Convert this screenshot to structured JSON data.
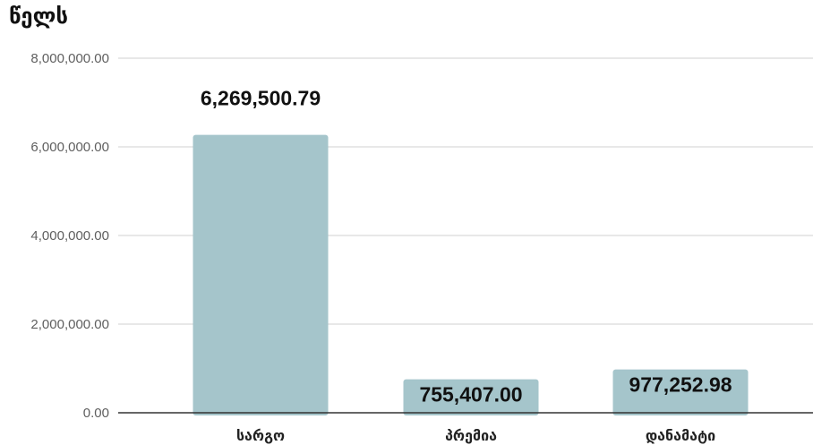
{
  "title": "წელს",
  "colors": {
    "bar": "#a5c5cb",
    "gridline": "#d0d0d0",
    "axis_line": "#333333"
  },
  "chart_data": {
    "type": "bar",
    "title": "წელს",
    "xlabel": "",
    "ylabel": "",
    "categories": [
      "სარგო",
      "პრემია",
      "დანამატი"
    ],
    "values": [
      6269500.79,
      755407.0,
      977252.98
    ],
    "data_labels": [
      "6,269,500.79",
      "755,407.00",
      "977,252.98"
    ],
    "y_ticks": [
      0,
      2000000,
      4000000,
      6000000,
      8000000
    ],
    "y_tick_labels": [
      "0.00",
      "2,000,000.00",
      "4,000,000.00",
      "6,000,000.00",
      "8,000,000.00"
    ],
    "ylim": [
      0,
      8000000
    ],
    "grid": true,
    "legend": "none"
  }
}
